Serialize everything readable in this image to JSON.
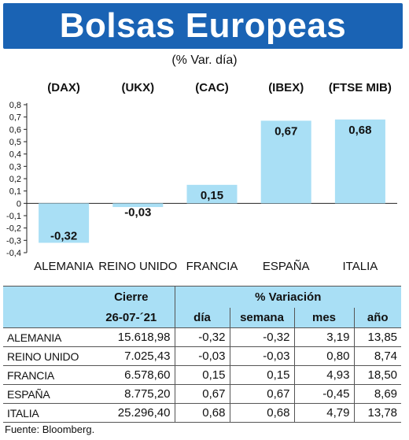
{
  "title": "Bolsas Europeas",
  "subtitle": "(% Var. día)",
  "chart_data": {
    "type": "bar",
    "categories": [
      "ALEMANIA",
      "REINO UNIDO",
      "FRANCIA",
      "ESPAÑA",
      "ITALIA"
    ],
    "indices": [
      "(DAX)",
      "(UKX)",
      "(CAC)",
      "(IBEX)",
      "(FTSE MIB)"
    ],
    "values": [
      -0.32,
      -0.03,
      0.15,
      0.67,
      0.68
    ],
    "value_labels": [
      "-0,32",
      "-0,03",
      "0,15",
      "0,67",
      "0,68"
    ],
    "ylim": [
      -0.4,
      0.8
    ],
    "yticks": [
      0.8,
      0.7,
      0.6,
      0.5,
      0.4,
      0.3,
      0.2,
      0.1,
      0,
      -0.1,
      -0.2,
      -0.3,
      -0.4
    ],
    "ytick_labels": [
      "0,8",
      "0,7",
      "0,6",
      "0,5",
      "0,4",
      "0,3",
      "0,2",
      "0,1",
      "0",
      "-0,1",
      "-0,2",
      "-0,3",
      "-0,4"
    ],
    "bar_color": "#a9dff5",
    "title": "",
    "xlabel": "",
    "ylabel": ""
  },
  "table": {
    "header_cierre": "Cierre",
    "header_variacion": "% Variación",
    "header_date": "26-07-´21",
    "subheaders": [
      "día",
      "semana",
      "mes",
      "año"
    ],
    "rows": [
      {
        "name": "ALEMANIA",
        "cierre": "15.618,98",
        "dia": "-0,32",
        "semana": "-0,32",
        "mes": "3,19",
        "ano": "13,85"
      },
      {
        "name": "REINO UNIDO",
        "cierre": "7.025,43",
        "dia": "-0,03",
        "semana": "-0,03",
        "mes": "0,80",
        "ano": "8,74"
      },
      {
        "name": "FRANCIA",
        "cierre": "6.578,60",
        "dia": "0,15",
        "semana": "0,15",
        "mes": "4,93",
        "ano": "18,50"
      },
      {
        "name": "ESPAÑA",
        "cierre": "8.775,20",
        "dia": "0,67",
        "semana": "0,67",
        "mes": "-0,45",
        "ano": "8,69"
      },
      {
        "name": "ITALIA",
        "cierre": "25.296,40",
        "dia": "0,68",
        "semana": "0,68",
        "mes": "4,79",
        "ano": "13,78"
      }
    ]
  },
  "source": "Fuente: Bloomberg.",
  "colors": {
    "banner": "#1a63b4",
    "accent": "#a9dff5"
  }
}
